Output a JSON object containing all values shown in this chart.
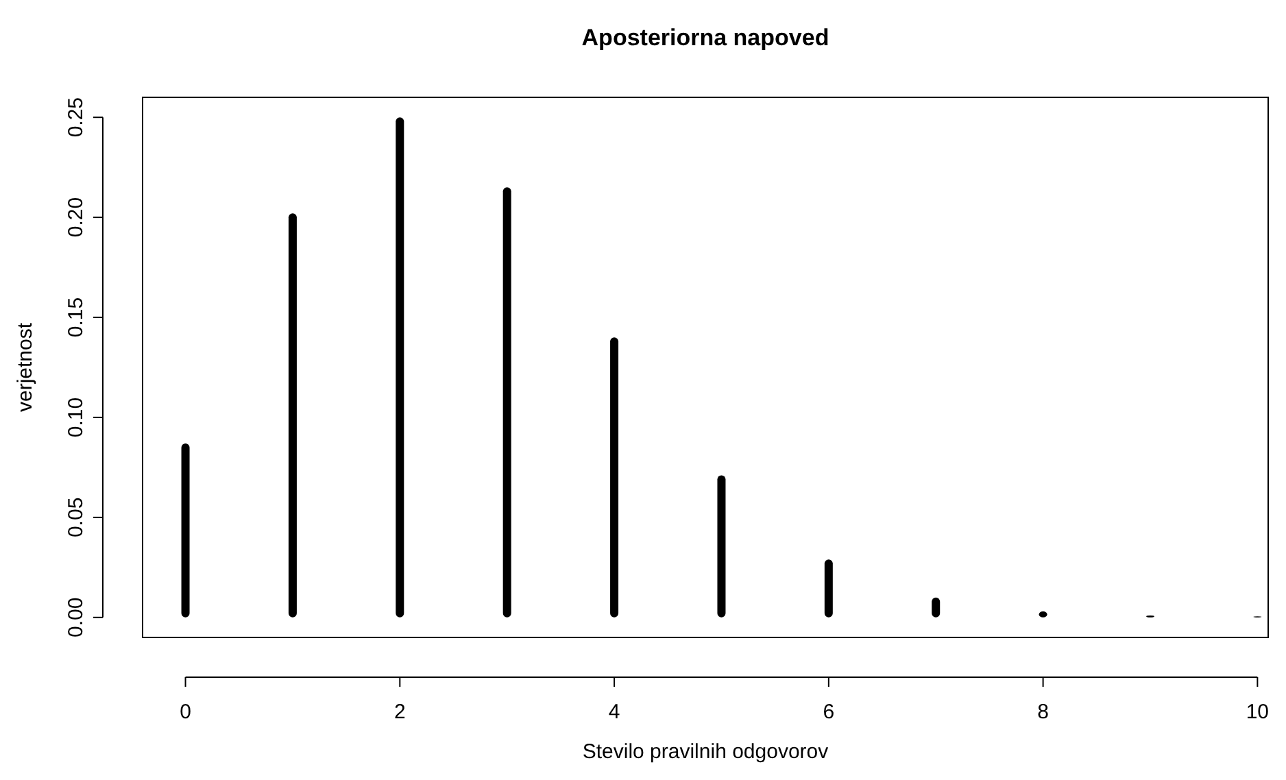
{
  "chart_data": {
    "type": "bar",
    "title": "Aposteriorna napoved",
    "xlabel": "Stevilo pravilnih odgovorov",
    "ylabel": "verjetnost",
    "x": [
      0,
      1,
      2,
      3,
      4,
      5,
      6,
      7,
      8,
      9,
      10
    ],
    "values": [
      0.087,
      0.202,
      0.25,
      0.215,
      0.14,
      0.071,
      0.029,
      0.01,
      0.003,
      0.001,
      0.0005
    ],
    "color": "#000000",
    "xlim": [
      -0.4,
      10.1
    ],
    "xticks": [
      0,
      2,
      4,
      6,
      8,
      10
    ],
    "ylim": [
      -0.01,
      0.26
    ],
    "yticks": [
      {
        "value": 0,
        "label": "0.00"
      },
      {
        "value": 0.05,
        "label": "0.05"
      },
      {
        "value": 0.1,
        "label": "0.10"
      },
      {
        "value": 0.15,
        "label": "0.15"
      },
      {
        "value": 0.2,
        "label": "0.20"
      },
      {
        "value": 0.25,
        "label": "0.25"
      }
    ],
    "grid": false
  }
}
